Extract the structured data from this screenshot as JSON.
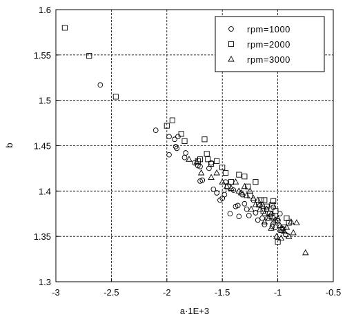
{
  "chart_data": {
    "type": "scatter",
    "title": "",
    "xlabel": "a·1E+3",
    "ylabel": "b",
    "xlim": [
      -3,
      -0.5
    ],
    "ylim": [
      1.3,
      1.6
    ],
    "xticks": [
      -3,
      -2.5,
      -2,
      -1.5,
      -1,
      -0.5
    ],
    "xtick_labels": [
      "-3",
      "-2.5",
      "-2",
      "-1.5",
      "-1",
      "-0.5"
    ],
    "yticks": [
      1.3,
      1.35,
      1.4,
      1.45,
      1.5,
      1.55,
      1.6
    ],
    "ytick_labels": [
      "1.3",
      "1.35",
      "1.4",
      "1.45",
      "1.5",
      "1.55",
      "1.6"
    ],
    "grid": true,
    "legend_position": "top-right",
    "series": [
      {
        "name": "rpm=1000",
        "marker": "circle",
        "points": [
          [
            -2.6,
            1.517
          ],
          [
            -2.1,
            1.467
          ],
          [
            -1.98,
            1.46
          ],
          [
            -1.98,
            1.44
          ],
          [
            -1.93,
            1.457
          ],
          [
            -1.92,
            1.449
          ],
          [
            -1.91,
            1.447
          ],
          [
            -1.9,
            1.46
          ],
          [
            -1.84,
            1.437
          ],
          [
            -1.83,
            1.442
          ],
          [
            -1.75,
            1.431
          ],
          [
            -1.72,
            1.428
          ],
          [
            -1.7,
            1.427
          ],
          [
            -1.7,
            1.411
          ],
          [
            -1.68,
            1.412
          ],
          [
            -1.62,
            1.425
          ],
          [
            -1.6,
            1.431
          ],
          [
            -1.58,
            1.402
          ],
          [
            -1.55,
            1.398
          ],
          [
            -1.52,
            1.39
          ],
          [
            -1.5,
            1.392
          ],
          [
            -1.48,
            1.396
          ],
          [
            -1.47,
            1.41
          ],
          [
            -1.43,
            1.375
          ],
          [
            -1.4,
            1.401
          ],
          [
            -1.38,
            1.383
          ],
          [
            -1.36,
            1.384
          ],
          [
            -1.35,
            1.372
          ],
          [
            -1.32,
            1.396
          ],
          [
            -1.3,
            1.386
          ],
          [
            -1.28,
            1.38
          ],
          [
            -1.26,
            1.373
          ],
          [
            -1.22,
            1.39
          ],
          [
            -1.2,
            1.376
          ],
          [
            -1.18,
            1.368
          ],
          [
            -1.16,
            1.384
          ],
          [
            -1.14,
            1.37
          ],
          [
            -1.12,
            1.363
          ],
          [
            -1.1,
            1.38
          ],
          [
            -1.09,
            1.37
          ],
          [
            -1.07,
            1.372
          ],
          [
            -1.05,
            1.361
          ],
          [
            -1.04,
            1.382
          ],
          [
            -1.02,
            1.36
          ],
          [
            -1.0,
            1.367
          ],
          [
            -0.98,
            1.375
          ],
          [
            -0.96,
            1.359
          ],
          [
            -0.93,
            1.352
          ]
        ]
      },
      {
        "name": "rpm=2000",
        "marker": "square",
        "points": [
          [
            -2.92,
            1.58
          ],
          [
            -2.7,
            1.549
          ],
          [
            -2.46,
            1.504
          ],
          [
            -2.0,
            1.472
          ],
          [
            -1.95,
            1.478
          ],
          [
            -1.87,
            1.463
          ],
          [
            -1.84,
            1.455
          ],
          [
            -1.72,
            1.433
          ],
          [
            -1.7,
            1.435
          ],
          [
            -1.66,
            1.457
          ],
          [
            -1.64,
            1.441
          ],
          [
            -1.63,
            1.435
          ],
          [
            -1.6,
            1.43
          ],
          [
            -1.55,
            1.433
          ],
          [
            -1.5,
            1.426
          ],
          [
            -1.47,
            1.42
          ],
          [
            -1.45,
            1.405
          ],
          [
            -1.42,
            1.41
          ],
          [
            -1.35,
            1.418
          ],
          [
            -1.3,
            1.416
          ],
          [
            -1.27,
            1.405
          ],
          [
            -1.25,
            1.395
          ],
          [
            -1.2,
            1.41
          ],
          [
            -1.17,
            1.385
          ],
          [
            -1.15,
            1.39
          ],
          [
            -1.13,
            1.378
          ],
          [
            -1.12,
            1.39
          ],
          [
            -1.1,
            1.383
          ],
          [
            -1.07,
            1.375
          ],
          [
            -1.05,
            1.372
          ],
          [
            -1.04,
            1.389
          ],
          [
            -1.02,
            1.378
          ],
          [
            -1.0,
            1.344
          ],
          [
            -0.97,
            1.357
          ],
          [
            -0.95,
            1.36
          ],
          [
            -0.92,
            1.37
          ],
          [
            -0.9,
            1.365
          ],
          [
            -1.05,
            1.385
          ]
        ]
      },
      {
        "name": "rpm=3000",
        "marker": "triangle",
        "points": [
          [
            -1.8,
            1.435
          ],
          [
            -1.73,
            1.432
          ],
          [
            -1.69,
            1.42
          ],
          [
            -1.6,
            1.415
          ],
          [
            -1.55,
            1.42
          ],
          [
            -1.5,
            1.41
          ],
          [
            -1.46,
            1.405
          ],
          [
            -1.42,
            1.403
          ],
          [
            -1.38,
            1.41
          ],
          [
            -1.35,
            1.4
          ],
          [
            -1.33,
            1.398
          ],
          [
            -1.3,
            1.405
          ],
          [
            -1.28,
            1.395
          ],
          [
            -1.25,
            1.4
          ],
          [
            -1.22,
            1.392
          ],
          [
            -1.2,
            1.385
          ],
          [
            -1.18,
            1.39
          ],
          [
            -1.16,
            1.38
          ],
          [
            -1.14,
            1.385
          ],
          [
            -1.12,
            1.375
          ],
          [
            -1.1,
            1.38
          ],
          [
            -1.08,
            1.37
          ],
          [
            -1.06,
            1.375
          ],
          [
            -1.04,
            1.366
          ],
          [
            -1.02,
            1.368
          ],
          [
            -1.0,
            1.37
          ],
          [
            -0.98,
            1.362
          ],
          [
            -0.96,
            1.358
          ],
          [
            -0.94,
            1.355
          ],
          [
            -0.92,
            1.36
          ],
          [
            -0.9,
            1.35
          ],
          [
            -0.88,
            1.366
          ],
          [
            -0.86,
            1.354
          ],
          [
            -0.83,
            1.365
          ],
          [
            -0.75,
            1.332
          ],
          [
            -0.97,
            1.348
          ],
          [
            -1.01,
            1.35
          ],
          [
            -1.06,
            1.359
          ],
          [
            -1.12,
            1.366
          ],
          [
            -1.24,
            1.38
          ]
        ]
      }
    ]
  }
}
